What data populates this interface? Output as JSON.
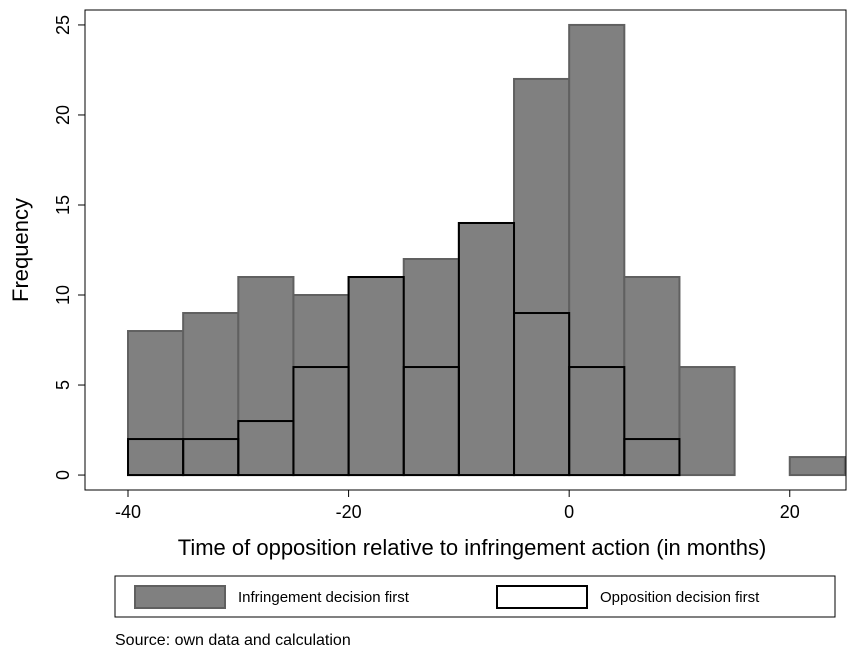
{
  "chart_data": {
    "type": "histogram",
    "x_label": "Time of opposition relative to infringement action (in months)",
    "y_label": "Frequency",
    "note": "Source: own data and calculation",
    "series": [
      {
        "name": "Infringement decision first",
        "color": "#808080",
        "edgecolor": "#606060",
        "bins": [
          -40,
          -35,
          -30,
          -25,
          -20,
          -15,
          -10,
          -5,
          0,
          5,
          10,
          15,
          20,
          25
        ],
        "values": [
          8,
          9,
          11,
          10,
          11,
          12,
          14,
          22,
          25,
          11,
          6,
          0,
          1
        ]
      },
      {
        "name": "Opposition decision first",
        "color": "none",
        "edgecolor": "#000000",
        "bins": [
          -40,
          -35,
          -30,
          -25,
          -20,
          -15,
          -10,
          -5,
          0,
          5,
          10
        ],
        "values": [
          2,
          2,
          3,
          6,
          11,
          6,
          14,
          9,
          6,
          2
        ]
      }
    ],
    "xlim": [
      -43.9,
      25.1
    ],
    "xticks": [
      -40,
      -20,
      0,
      20
    ],
    "ylim": [
      -0.83,
      25.83
    ],
    "yticks": [
      0,
      5,
      10,
      15,
      20,
      25
    ],
    "legend": "bottom"
  }
}
